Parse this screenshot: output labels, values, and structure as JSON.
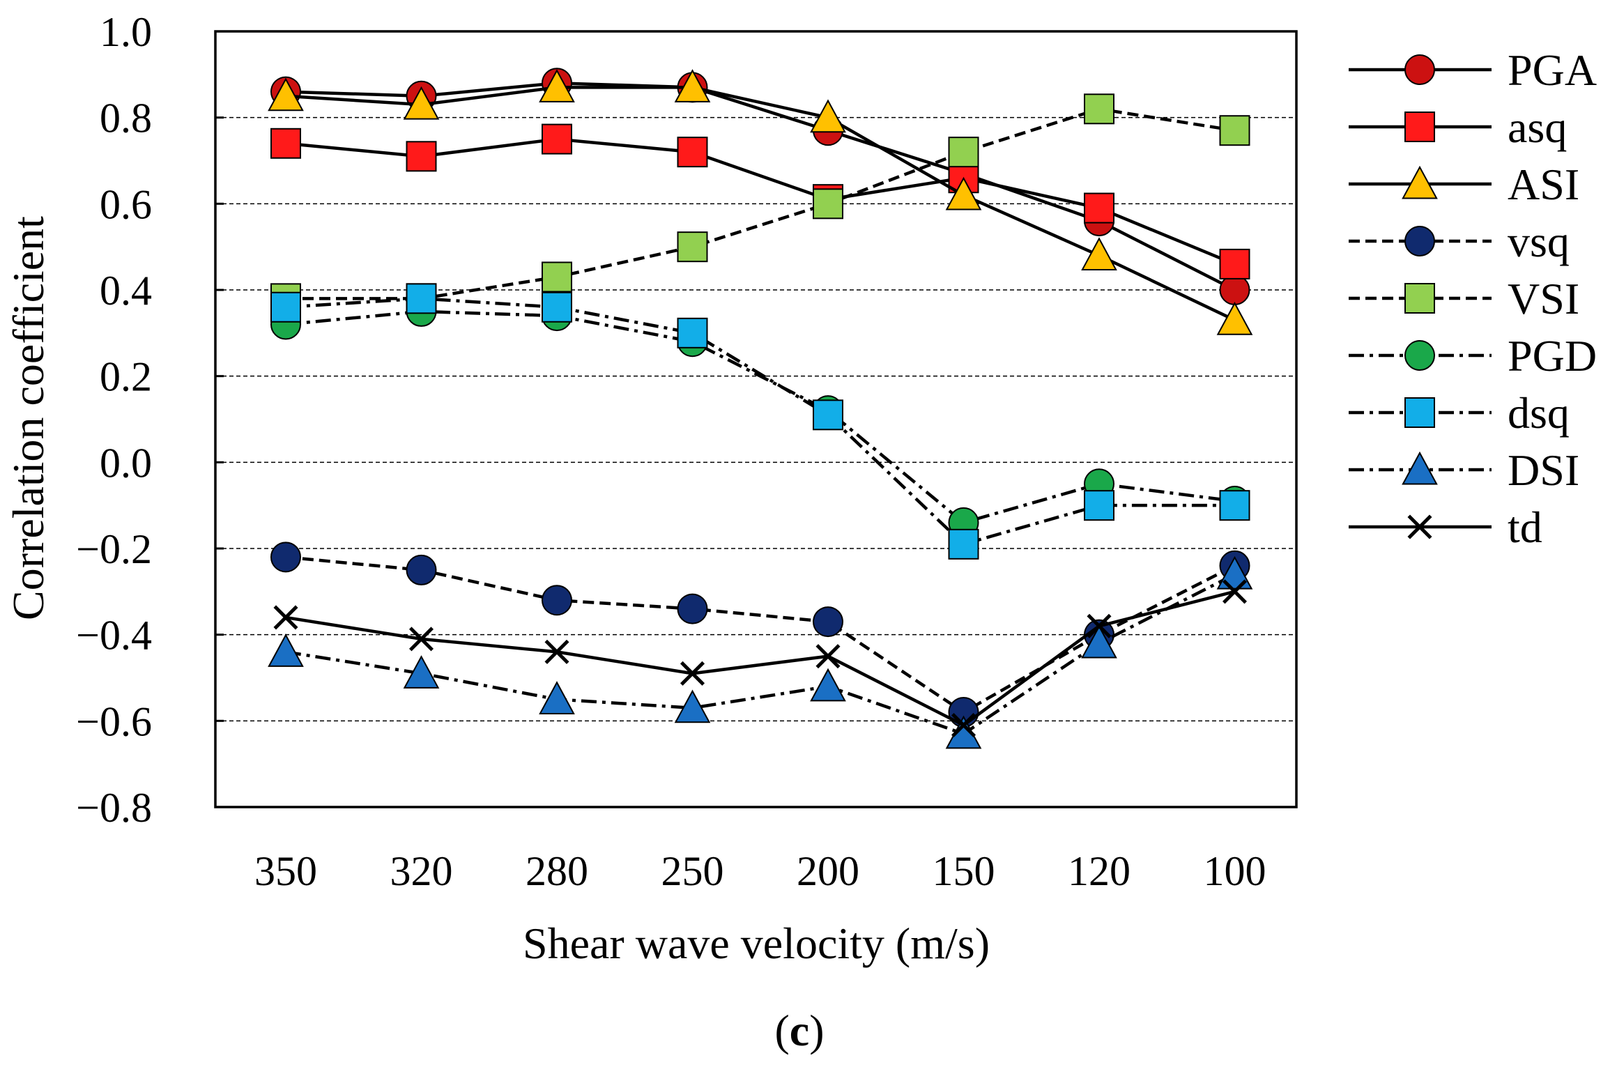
{
  "chart_data": {
    "type": "line",
    "panel_label": "c",
    "xlabel": "Shear wave velocity (m/s)",
    "ylabel": "Correlation coefficient",
    "categories": [
      "350",
      "320",
      "280",
      "250",
      "200",
      "150",
      "120",
      "100"
    ],
    "y_ticks": [
      "1.0",
      "0.8",
      "0.6",
      "0.4",
      "0.2",
      "0.0",
      "−0.2",
      "−0.4",
      "−0.6",
      "−0.8"
    ],
    "ylim": [
      -0.8,
      1.0
    ],
    "grid": "horizontal dashed",
    "legend_position": "right",
    "series": [
      {
        "name": "PGA",
        "marker": "circle",
        "color": "#cc1111",
        "dash": "solid",
        "values": [
          0.86,
          0.85,
          0.88,
          0.87,
          0.77,
          0.67,
          0.56,
          0.4
        ]
      },
      {
        "name": "asq",
        "marker": "square",
        "color": "#ff1a1a",
        "dash": "solid",
        "values": [
          0.74,
          0.71,
          0.75,
          0.72,
          0.61,
          0.66,
          0.59,
          0.46
        ]
      },
      {
        "name": "ASI",
        "marker": "triangle",
        "color": "#ffc000",
        "dash": "solid",
        "values": [
          0.85,
          0.83,
          0.87,
          0.87,
          0.8,
          0.62,
          0.48,
          0.33
        ]
      },
      {
        "name": "vsq",
        "marker": "circle",
        "color": "#102a6e",
        "dash": "dash",
        "values": [
          -0.22,
          -0.25,
          -0.32,
          -0.34,
          -0.37,
          -0.58,
          -0.4,
          -0.24
        ]
      },
      {
        "name": "VSI",
        "marker": "square",
        "color": "#92d050",
        "dash": "dash",
        "values": [
          0.38,
          0.38,
          0.43,
          0.5,
          0.6,
          0.72,
          0.82,
          0.77
        ]
      },
      {
        "name": "PGD",
        "marker": "circle",
        "color": "#1aa84a",
        "dash": "dashdot",
        "values": [
          0.32,
          0.35,
          0.34,
          0.28,
          0.12,
          -0.14,
          -0.05,
          -0.09
        ]
      },
      {
        "name": "dsq",
        "marker": "square",
        "color": "#12aee8",
        "dash": "dashdot",
        "values": [
          0.36,
          0.38,
          0.36,
          0.3,
          0.11,
          -0.19,
          -0.1,
          -0.1
        ]
      },
      {
        "name": "DSI",
        "marker": "triangle",
        "color": "#1a6fc4",
        "dash": "dashdot",
        "values": [
          -0.44,
          -0.49,
          -0.55,
          -0.57,
          -0.52,
          -0.63,
          -0.42,
          -0.26
        ]
      },
      {
        "name": "td",
        "marker": "x",
        "color": "#000000",
        "dash": "solid",
        "values": [
          -0.36,
          -0.41,
          -0.44,
          -0.49,
          -0.45,
          -0.61,
          -0.38,
          -0.3
        ]
      }
    ]
  }
}
